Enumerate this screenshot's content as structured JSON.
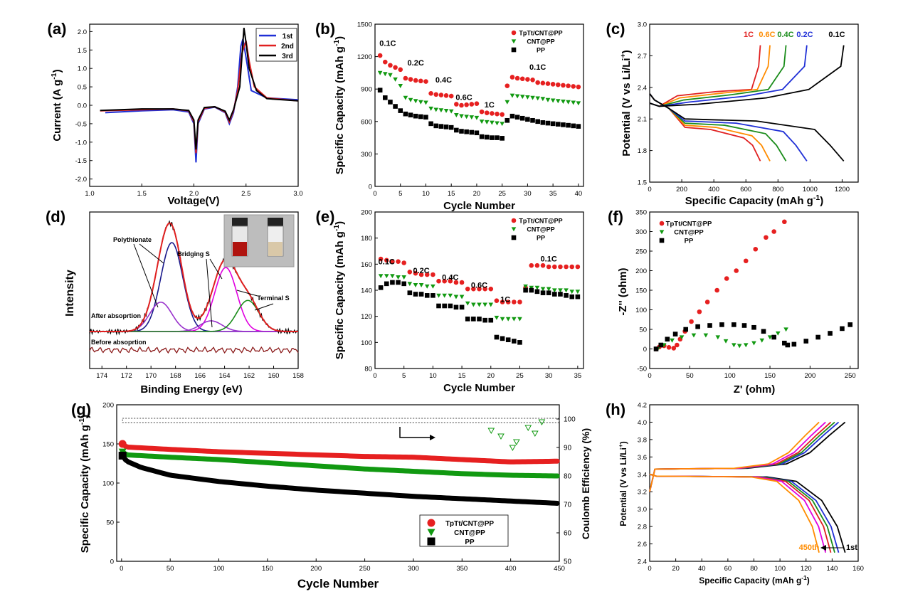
{
  "figure": {
    "panels": [
      "(a)",
      "(b)",
      "(c)",
      "(d)",
      "(e)",
      "(f)",
      "(g)",
      "(h)"
    ]
  },
  "chart_data": [
    {
      "id": "a",
      "panel_label": "(a)",
      "type": "line",
      "xlabel": "Voltage(V)",
      "ylabel": "Current (A g",
      "ylabel_sup": "-1",
      "ylabel_end": ")",
      "xlim": [
        1.0,
        3.0
      ],
      "ylim": [
        -2.2,
        2.2
      ],
      "xticks": [
        "1.0",
        "1.5",
        "2.0",
        "2.5",
        "3.0"
      ],
      "yticks": [
        "-2.0",
        "-1.5",
        "-1.0",
        "-0.5",
        "0.0",
        "0.5",
        "1.0",
        "1.5",
        "2.0"
      ],
      "legend": [
        "1st",
        "2nd",
        "3rd"
      ],
      "colors": [
        "#1f2fd6",
        "#e02020",
        "#000000"
      ],
      "series": [
        {
          "name": "1st",
          "x": [
            1.15,
            1.5,
            1.8,
            1.95,
            2.0,
            2.02,
            2.04,
            2.1,
            2.2,
            2.3,
            2.34,
            2.38,
            2.42,
            2.45,
            2.47,
            2.5,
            2.55,
            2.7,
            3.0
          ],
          "y": [
            -0.2,
            -0.15,
            -0.12,
            -0.18,
            -0.5,
            -1.55,
            -0.5,
            -0.1,
            -0.05,
            -0.2,
            -0.5,
            -0.2,
            0.5,
            1.6,
            1.8,
            1.3,
            0.4,
            0.2,
            0.15
          ]
        },
        {
          "name": "2nd",
          "x": [
            1.1,
            1.5,
            1.8,
            1.95,
            2.0,
            2.02,
            2.04,
            2.1,
            2.2,
            2.3,
            2.34,
            2.38,
            2.42,
            2.46,
            2.5,
            2.53,
            2.58,
            2.7,
            3.0
          ],
          "y": [
            -0.15,
            -0.12,
            -0.1,
            -0.15,
            -0.45,
            -1.3,
            -0.45,
            -0.08,
            -0.04,
            -0.18,
            -0.45,
            -0.15,
            0.4,
            1.4,
            1.75,
            1.2,
            0.5,
            0.2,
            0.12
          ]
        },
        {
          "name": "3rd",
          "x": [
            1.1,
            1.5,
            1.8,
            1.95,
            2.0,
            2.02,
            2.04,
            2.1,
            2.2,
            2.3,
            2.34,
            2.38,
            2.44,
            2.48,
            2.5,
            2.53,
            2.6,
            2.7,
            3.0
          ],
          "y": [
            -0.14,
            -0.1,
            -0.1,
            -0.14,
            -0.4,
            -1.2,
            -0.4,
            -0.06,
            -0.04,
            -0.16,
            -0.4,
            -0.12,
            0.5,
            2.1,
            1.7,
            1.0,
            0.4,
            0.18,
            0.12
          ]
        }
      ]
    },
    {
      "id": "b",
      "panel_label": "(b)",
      "type": "scatter",
      "xlabel": "Cycle Number",
      "ylabel": "Specific Capacity (mAh g",
      "ylabel_sup": "-1",
      "ylabel_end": ")",
      "xlim": [
        0,
        41
      ],
      "ylim": [
        0,
        1500
      ],
      "xticks": [
        "0",
        "5",
        "10",
        "15",
        "20",
        "25",
        "30",
        "35",
        "40"
      ],
      "yticks": [
        "0",
        "300",
        "600",
        "900",
        "1200",
        "1500"
      ],
      "legend": [
        "TpTt/CNT@PP",
        "CNT@PP",
        "PP"
      ],
      "rate_labels": [
        "0.1C",
        "0.2C",
        "0.4C",
        "0.6C",
        "1C",
        "0.1C"
      ],
      "series": [
        {
          "name": "TpTt/CNT@PP",
          "values": [
            1210,
            1150,
            1120,
            1100,
            1080,
            1000,
            990,
            980,
            975,
            970,
            860,
            850,
            845,
            840,
            835,
            760,
            750,
            755,
            760,
            765,
            690,
            680,
            675,
            670,
            665,
            930,
            1010,
            1000,
            995,
            990,
            985,
            960,
            955,
            950,
            945,
            940,
            935,
            930,
            925,
            920
          ]
        },
        {
          "name": "CNT@PP",
          "values": [
            1050,
            1040,
            1030,
            990,
            930,
            820,
            800,
            790,
            780,
            775,
            720,
            710,
            705,
            700,
            695,
            660,
            650,
            645,
            640,
            635,
            600,
            595,
            590,
            585,
            580,
            780,
            840,
            835,
            830,
            825,
            820,
            815,
            810,
            800,
            795,
            790,
            785,
            780,
            775,
            770
          ]
        },
        {
          "name": "PP",
          "values": [
            890,
            820,
            780,
            740,
            700,
            670,
            660,
            650,
            645,
            640,
            580,
            560,
            555,
            550,
            545,
            520,
            510,
            505,
            500,
            495,
            460,
            455,
            450,
            450,
            445,
            610,
            650,
            640,
            630,
            620,
            610,
            600,
            590,
            585,
            580,
            575,
            570,
            565,
            560,
            555
          ]
        }
      ]
    },
    {
      "id": "c",
      "panel_label": "(c)",
      "type": "line",
      "xlabel": "Specific Capacity (mAh g",
      "xlabel_sup": "-1",
      "xlabel_end": ")",
      "ylabel": "Potential  (V vs Li/Li",
      "ylabel_sup": "+",
      "ylabel_end": ")",
      "xlim": [
        0,
        1300
      ],
      "ylim": [
        1.5,
        3.0
      ],
      "xticks": [
        "0",
        "200",
        "400",
        "600",
        "800",
        "1000",
        "1200"
      ],
      "yticks": [
        "1.5",
        "1.8",
        "2.1",
        "2.4",
        "2.7",
        "3.0"
      ],
      "rates": [
        "1C",
        "0.6C",
        "0.4C",
        "0.2C",
        "0.1C"
      ],
      "colors": [
        "#e02020",
        "#ff8c00",
        "#1a8c1a",
        "#1f2fd6",
        "#000000"
      ],
      "capacities": [
        690,
        750,
        850,
        980,
        1210
      ]
    },
    {
      "id": "d",
      "panel_label": "(d)",
      "type": "line",
      "xlabel": "Binding Energy (eV)",
      "ylabel": "Intensity",
      "xlim": [
        175,
        158
      ],
      "xticks": [
        "174",
        "172",
        "170",
        "168",
        "166",
        "164",
        "162",
        "160",
        "158"
      ],
      "annotations": [
        "Polythionate",
        "Bridging S",
        "Terminal S",
        "After absoprtion",
        "Before absoprtion"
      ],
      "components": [
        {
          "name": "Polythionate-1",
          "center": 168.3,
          "height": 1.0,
          "color": "#1a1a8c"
        },
        {
          "name": "Polythionate-2",
          "center": 169.2,
          "height": 0.33,
          "color": "#9932cc"
        },
        {
          "name": "Bridging S-1",
          "center": 163.9,
          "height": 0.72,
          "color": "#e000e0"
        },
        {
          "name": "Bridging S-2",
          "center": 165.1,
          "height": 0.12,
          "color": "#9932cc"
        },
        {
          "name": "Terminal S",
          "center": 162.1,
          "height": 0.35,
          "color": "#1a8c1a"
        }
      ]
    },
    {
      "id": "e",
      "panel_label": "(e)",
      "type": "scatter",
      "xlabel": "Cycle Number",
      "ylabel": "Specific Capacity (mAh g",
      "ylabel_sup": "-1",
      "ylabel_end": ")",
      "xlim": [
        0,
        36
      ],
      "ylim": [
        80,
        200
      ],
      "xticks": [
        "0",
        "5",
        "10",
        "15",
        "20",
        "25",
        "30",
        "35"
      ],
      "yticks": [
        "80",
        "100",
        "120",
        "140",
        "160",
        "180",
        "200"
      ],
      "legend": [
        "TpTt/CNT@PP",
        "CNT@PP",
        "PP"
      ],
      "rate_labels": [
        "0.1C",
        "0.2C",
        "0.4C",
        "0.6C",
        "1C",
        "0.1C"
      ],
      "series": [
        {
          "name": "TpTt/CNT@PP",
          "values": [
            164,
            163,
            162,
            162,
            161,
            154,
            153,
            152,
            152,
            152,
            147,
            147,
            147,
            146,
            146,
            141,
            141,
            141,
            141,
            141,
            132,
            131,
            131,
            131,
            131,
            142,
            159,
            159,
            159,
            158,
            158,
            158,
            158,
            158,
            158
          ]
        },
        {
          "name": "CNT@PP",
          "values": [
            151,
            151,
            151,
            150,
            150,
            145,
            144,
            144,
            143,
            143,
            136,
            136,
            136,
            135,
            135,
            130,
            129,
            129,
            129,
            129,
            119,
            118,
            118,
            118,
            118,
            143,
            142,
            142,
            141,
            141,
            140,
            140,
            140,
            139,
            139
          ]
        },
        {
          "name": "PP",
          "values": [
            142,
            145,
            146,
            146,
            145,
            138,
            137,
            137,
            136,
            136,
            128,
            128,
            128,
            127,
            127,
            118,
            118,
            118,
            117,
            117,
            104,
            103,
            102,
            101,
            100,
            140,
            140,
            139,
            138,
            138,
            137,
            137,
            136,
            135,
            135
          ]
        }
      ]
    },
    {
      "id": "f",
      "panel_label": "(f)",
      "type": "scatter",
      "xlabel": "Z' (ohm)",
      "ylabel": "-Z'' (ohm)",
      "xlim": [
        0,
        260
      ],
      "ylim": [
        -50,
        350
      ],
      "xticks": [
        "0",
        "50",
        "100",
        "150",
        "200",
        "250"
      ],
      "yticks": [
        "-50",
        "0",
        "50",
        "100",
        "150",
        "200",
        "250",
        "300",
        "350"
      ],
      "legend": [
        "TpTt/CNT@PP",
        "CNT@PP",
        "PP"
      ],
      "series": [
        {
          "name": "TpTt/CNT@PP",
          "x": [
            8,
            12,
            18,
            24,
            30,
            34,
            38,
            44,
            52,
            62,
            72,
            84,
            96,
            108,
            120,
            132,
            145,
            155,
            168
          ],
          "y": [
            0,
            5,
            8,
            4,
            2,
            10,
            25,
            45,
            70,
            95,
            120,
            150,
            180,
            200,
            225,
            255,
            285,
            300,
            325
          ]
        },
        {
          "name": "CNT@PP",
          "x": [
            10,
            18,
            28,
            40,
            55,
            70,
            85,
            95,
            105,
            112,
            120,
            130,
            140,
            150,
            160,
            170
          ],
          "y": [
            0,
            10,
            22,
            30,
            35,
            35,
            30,
            20,
            10,
            8,
            10,
            15,
            22,
            30,
            40,
            50
          ]
        },
        {
          "name": "PP",
          "x": [
            8,
            14,
            22,
            32,
            45,
            60,
            75,
            90,
            105,
            118,
            130,
            142,
            155,
            168,
            172,
            180,
            195,
            210,
            225,
            240,
            250
          ],
          "y": [
            0,
            10,
            25,
            38,
            50,
            57,
            60,
            62,
            62,
            60,
            55,
            45,
            30,
            15,
            10,
            12,
            20,
            30,
            40,
            52,
            62
          ]
        }
      ]
    },
    {
      "id": "g",
      "panel_label": "(g)",
      "type": "scatter",
      "xlabel": "Cycle Number",
      "ylabel": "Specific Capacity (mAh g",
      "ylabel_sup": "-1",
      "ylabel_end": ")",
      "ylabel_right": "Coulomb Efficiency (%)",
      "xlim": [
        -5,
        450
      ],
      "ylim": [
        0,
        200
      ],
      "ylim_right": [
        50,
        105
      ],
      "xticks": [
        "0",
        "50",
        "100",
        "150",
        "200",
        "250",
        "300",
        "350",
        "400",
        "450"
      ],
      "yticks": [
        "0",
        "50",
        "100",
        "150",
        "200"
      ],
      "yticks_right": [
        "50",
        "60",
        "70",
        "80",
        "90",
        "100"
      ],
      "legend": [
        "TpTt/CNT@PP",
        "CNT@PP",
        "PP"
      ],
      "series": [
        {
          "name": "TpTt/CNT@PP",
          "x": [
            1,
            5,
            20,
            50,
            100,
            150,
            200,
            250,
            300,
            350,
            400,
            450
          ],
          "values": [
            150,
            146,
            145,
            143,
            140,
            138,
            136,
            134,
            133,
            130,
            127,
            128
          ]
        },
        {
          "name": "CNT@PP",
          "x": [
            1,
            5,
            20,
            50,
            100,
            150,
            200,
            250,
            300,
            350,
            400,
            450
          ],
          "values": [
            140,
            136,
            135,
            133,
            130,
            126,
            122,
            118,
            115,
            112,
            110,
            109
          ]
        },
        {
          "name": "PP",
          "x": [
            1,
            5,
            20,
            50,
            100,
            150,
            200,
            250,
            300,
            350,
            400,
            450
          ],
          "values": [
            135,
            128,
            120,
            110,
            102,
            96,
            91,
            87,
            83,
            80,
            77,
            74
          ]
        }
      ],
      "coulomb_efficiency": 99.5
    },
    {
      "id": "h",
      "panel_label": "(h)",
      "type": "line",
      "xlabel": "Specific Capacity (mAh g",
      "xlabel_sup": "-1",
      "xlabel_end": ")",
      "ylabel": "Potential  (V vs Li/Li",
      "ylabel_sup": "+",
      "ylabel_end": ")",
      "xlim": [
        0,
        160
      ],
      "ylim": [
        2.4,
        4.2
      ],
      "xticks": [
        "0",
        "20",
        "40",
        "60",
        "80",
        "100",
        "120",
        "140",
        "160"
      ],
      "yticks": [
        "2.4",
        "2.6",
        "2.8",
        "3.0",
        "3.2",
        "3.4",
        "3.6",
        "3.8",
        "4.0",
        "4.2"
      ],
      "first_label": "1st",
      "last_label": "450th",
      "colors": [
        "#000000",
        "#1f2fd6",
        "#1a8c1a",
        "#e02020",
        "#e000e0",
        "#ff8c00"
      ],
      "capacities": [
        150,
        145,
        142,
        139,
        135,
        130
      ]
    }
  ]
}
